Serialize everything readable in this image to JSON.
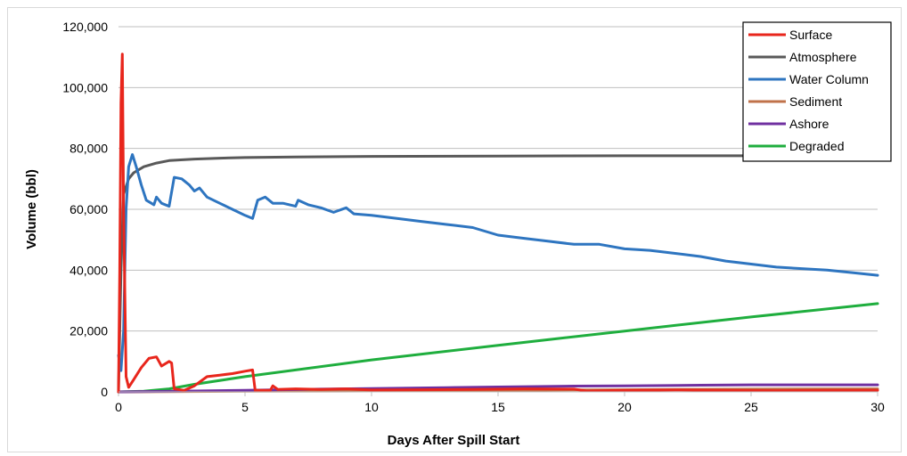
{
  "chart_data": {
    "type": "line",
    "xlabel": "Days After Spill Start",
    "ylabel": "Volume (bbl)",
    "xlim": [
      0,
      30
    ],
    "ylim": [
      0,
      120000
    ],
    "xticks": [
      "0",
      "5",
      "10",
      "15",
      "20",
      "25",
      "30"
    ],
    "yticks": [
      "0",
      "20,000",
      "40,000",
      "60,000",
      "80,000",
      "100,000",
      "120,000"
    ],
    "grid": "horizontal",
    "legend_position": "top-right",
    "series": [
      {
        "name": "Surface",
        "color": "#e8261c",
        "points": [
          [
            0,
            0
          ],
          [
            0.05,
            40000
          ],
          [
            0.1,
            95000
          ],
          [
            0.15,
            111000
          ],
          [
            0.2,
            60000
          ],
          [
            0.3,
            5000
          ],
          [
            0.4,
            1500
          ],
          [
            0.6,
            4000
          ],
          [
            0.9,
            8000
          ],
          [
            1.2,
            11000
          ],
          [
            1.5,
            11500
          ],
          [
            1.7,
            8500
          ],
          [
            2.0,
            10000
          ],
          [
            2.1,
            9500
          ],
          [
            2.2,
            1000
          ],
          [
            2.6,
            500
          ],
          [
            3.0,
            2000
          ],
          [
            3.5,
            5000
          ],
          [
            4.0,
            5500
          ],
          [
            4.5,
            6000
          ],
          [
            5.0,
            6800
          ],
          [
            5.3,
            7200
          ],
          [
            5.4,
            500
          ],
          [
            6.0,
            500
          ],
          [
            6.1,
            2000
          ],
          [
            6.3,
            800
          ],
          [
            7,
            1000
          ],
          [
            8,
            800
          ],
          [
            9,
            1000
          ],
          [
            10,
            600
          ],
          [
            12,
            700
          ],
          [
            14,
            800
          ],
          [
            16,
            1000
          ],
          [
            18,
            900
          ],
          [
            18.5,
            300
          ],
          [
            20,
            500
          ],
          [
            22,
            600
          ],
          [
            24,
            500
          ],
          [
            26,
            400
          ],
          [
            28,
            500
          ],
          [
            30,
            500
          ]
        ]
      },
      {
        "name": "Atmosphere",
        "color": "#595959",
        "points": [
          [
            0,
            0
          ],
          [
            0.1,
            40000
          ],
          [
            0.2,
            65000
          ],
          [
            0.4,
            70000
          ],
          [
            0.6,
            72000
          ],
          [
            1.0,
            74000
          ],
          [
            1.5,
            75200
          ],
          [
            2.0,
            76000
          ],
          [
            3.0,
            76500
          ],
          [
            4.0,
            76800
          ],
          [
            5.0,
            77000
          ],
          [
            7.0,
            77200
          ],
          [
            10,
            77400
          ],
          [
            15,
            77500
          ],
          [
            20,
            77600
          ],
          [
            25,
            77600
          ],
          [
            30,
            77600
          ]
        ]
      },
      {
        "name": "Water Column",
        "color": "#2e75c0",
        "points": [
          [
            0,
            12000
          ],
          [
            0.1,
            7000
          ],
          [
            0.2,
            20000
          ],
          [
            0.3,
            60000
          ],
          [
            0.4,
            74000
          ],
          [
            0.55,
            78000
          ],
          [
            0.7,
            74000
          ],
          [
            0.9,
            68000
          ],
          [
            1.1,
            63000
          ],
          [
            1.4,
            61500
          ],
          [
            1.5,
            64000
          ],
          [
            1.7,
            62000
          ],
          [
            2.0,
            61000
          ],
          [
            2.2,
            70500
          ],
          [
            2.5,
            70000
          ],
          [
            2.8,
            68000
          ],
          [
            3.0,
            66000
          ],
          [
            3.2,
            67000
          ],
          [
            3.5,
            64000
          ],
          [
            4.0,
            62000
          ],
          [
            4.5,
            60000
          ],
          [
            5.0,
            58000
          ],
          [
            5.3,
            57000
          ],
          [
            5.5,
            63000
          ],
          [
            5.8,
            64000
          ],
          [
            6.1,
            62000
          ],
          [
            6.5,
            62000
          ],
          [
            7.0,
            61000
          ],
          [
            7.1,
            63000
          ],
          [
            7.5,
            61500
          ],
          [
            8.0,
            60500
          ],
          [
            8.5,
            59000
          ],
          [
            9.0,
            60500
          ],
          [
            9.3,
            58500
          ],
          [
            10,
            58000
          ],
          [
            11,
            57000
          ],
          [
            12,
            56000
          ],
          [
            13,
            55000
          ],
          [
            14,
            54000
          ],
          [
            15,
            51500
          ],
          [
            16,
            50500
          ],
          [
            17,
            49500
          ],
          [
            18,
            48500
          ],
          [
            19,
            48500
          ],
          [
            20,
            47000
          ],
          [
            21,
            46500
          ],
          [
            22,
            45500
          ],
          [
            23,
            44500
          ],
          [
            24,
            43000
          ],
          [
            25,
            42000
          ],
          [
            26,
            41000
          ],
          [
            27,
            40500
          ],
          [
            28,
            40000
          ],
          [
            29,
            39200
          ],
          [
            30,
            38300
          ]
        ]
      },
      {
        "name": "Sediment",
        "color": "#c0724a",
        "points": [
          [
            0,
            0
          ],
          [
            2,
            100
          ],
          [
            5,
            200
          ],
          [
            10,
            300
          ],
          [
            15,
            500
          ],
          [
            20,
            700
          ],
          [
            25,
            900
          ],
          [
            30,
            1000
          ]
        ]
      },
      {
        "name": "Ashore",
        "color": "#7030a0",
        "points": [
          [
            0,
            0
          ],
          [
            3,
            300
          ],
          [
            5,
            500
          ],
          [
            8,
            900
          ],
          [
            10,
            1100
          ],
          [
            13,
            1400
          ],
          [
            15,
            1600
          ],
          [
            18,
            1900
          ],
          [
            20,
            2000
          ],
          [
            23,
            2200
          ],
          [
            25,
            2300
          ],
          [
            28,
            2300
          ],
          [
            30,
            2300
          ]
        ]
      },
      {
        "name": "Degraded",
        "color": "#1fae3e",
        "points": [
          [
            0,
            0
          ],
          [
            1,
            200
          ],
          [
            2,
            1000
          ],
          [
            3,
            2500
          ],
          [
            5,
            5000
          ],
          [
            10,
            10500
          ],
          [
            15,
            15300
          ],
          [
            20,
            20000
          ],
          [
            25,
            24600
          ],
          [
            30,
            29000
          ]
        ]
      }
    ]
  }
}
